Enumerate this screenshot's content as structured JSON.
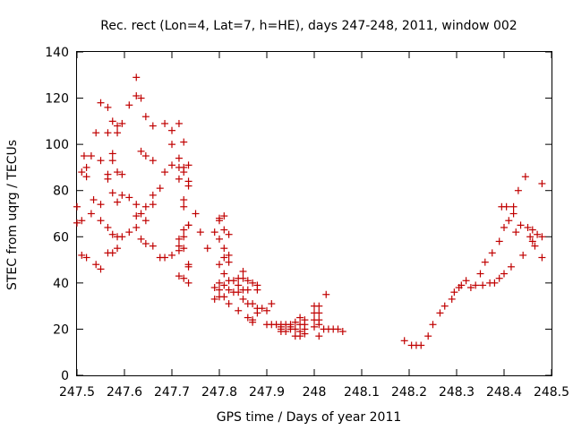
{
  "chart_data": {
    "type": "scatter",
    "title": "Rec. rect (Lon=4, Lat=7, h=HE), days 247-248, 2011, window 002",
    "xlabel": "GPS time / Days of year 2011",
    "ylabel": "STEC from uqrg / TECUs",
    "xlim": [
      247.5,
      248.5
    ],
    "ylim": [
      0,
      140
    ],
    "xticks": [
      "247.5",
      "247.6",
      "247.7",
      "247.8",
      "247.9",
      "248",
      "248.1",
      "248.2",
      "248.3",
      "248.4",
      "248.5"
    ],
    "yticks": [
      "0",
      "20",
      "40",
      "60",
      "80",
      "100",
      "120",
      "140"
    ],
    "grid": false,
    "marker": "+",
    "colors": {
      "points": "#c00000",
      "axes": "#000000"
    },
    "points": [
      [
        247.5,
        73
      ],
      [
        247.5,
        66
      ],
      [
        247.51,
        88
      ],
      [
        247.51,
        67
      ],
      [
        247.51,
        52
      ],
      [
        247.515,
        95
      ],
      [
        247.52,
        90
      ],
      [
        247.52,
        86
      ],
      [
        247.52,
        51
      ],
      [
        247.53,
        95
      ],
      [
        247.53,
        70
      ],
      [
        247.535,
        76
      ],
      [
        247.54,
        105
      ],
      [
        247.54,
        48
      ],
      [
        247.55,
        118
      ],
      [
        247.55,
        93
      ],
      [
        247.55,
        74
      ],
      [
        247.55,
        67
      ],
      [
        247.55,
        46
      ],
      [
        247.565,
        116
      ],
      [
        247.565,
        105
      ],
      [
        247.565,
        87
      ],
      [
        247.565,
        85
      ],
      [
        247.565,
        64
      ],
      [
        247.565,
        53
      ],
      [
        247.575,
        110
      ],
      [
        247.575,
        96
      ],
      [
        247.575,
        93
      ],
      [
        247.575,
        79
      ],
      [
        247.575,
        61
      ],
      [
        247.575,
        53
      ],
      [
        247.585,
        108
      ],
      [
        247.585,
        105
      ],
      [
        247.585,
        88
      ],
      [
        247.585,
        75
      ],
      [
        247.585,
        60
      ],
      [
        247.585,
        55
      ],
      [
        247.595,
        109
      ],
      [
        247.595,
        87
      ],
      [
        247.595,
        78
      ],
      [
        247.595,
        60
      ],
      [
        247.61,
        117
      ],
      [
        247.61,
        77
      ],
      [
        247.61,
        62
      ],
      [
        247.625,
        129
      ],
      [
        247.625,
        121
      ],
      [
        247.625,
        74
      ],
      [
        247.625,
        69
      ],
      [
        247.625,
        64
      ],
      [
        247.635,
        120
      ],
      [
        247.635,
        97
      ],
      [
        247.635,
        70
      ],
      [
        247.635,
        59
      ],
      [
        247.645,
        112
      ],
      [
        247.645,
        95
      ],
      [
        247.645,
        73
      ],
      [
        247.645,
        67
      ],
      [
        247.645,
        57
      ],
      [
        247.66,
        108
      ],
      [
        247.66,
        93
      ],
      [
        247.66,
        78
      ],
      [
        247.66,
        74
      ],
      [
        247.66,
        56
      ],
      [
        247.675,
        81
      ],
      [
        247.675,
        51
      ],
      [
        247.685,
        109
      ],
      [
        247.685,
        88
      ],
      [
        247.685,
        51
      ],
      [
        247.7,
        106
      ],
      [
        247.7,
        100
      ],
      [
        247.7,
        91
      ],
      [
        247.7,
        52
      ],
      [
        247.715,
        109
      ],
      [
        247.715,
        94
      ],
      [
        247.715,
        90
      ],
      [
        247.715,
        85
      ],
      [
        247.715,
        59
      ],
      [
        247.715,
        56
      ],
      [
        247.715,
        54
      ],
      [
        247.715,
        43
      ],
      [
        247.725,
        101
      ],
      [
        247.725,
        90
      ],
      [
        247.725,
        88
      ],
      [
        247.725,
        76
      ],
      [
        247.725,
        73
      ],
      [
        247.725,
        63
      ],
      [
        247.725,
        60
      ],
      [
        247.725,
        55
      ],
      [
        247.725,
        42
      ],
      [
        247.735,
        91
      ],
      [
        247.735,
        84
      ],
      [
        247.735,
        82
      ],
      [
        247.735,
        65
      ],
      [
        247.735,
        65
      ],
      [
        247.735,
        48
      ],
      [
        247.735,
        47
      ],
      [
        247.735,
        40
      ],
      [
        247.75,
        70
      ],
      [
        247.76,
        62
      ],
      [
        247.775,
        55
      ],
      [
        247.79,
        62
      ],
      [
        247.79,
        38
      ],
      [
        247.79,
        33
      ],
      [
        247.8,
        68
      ],
      [
        247.8,
        67
      ],
      [
        247.8,
        59
      ],
      [
        247.8,
        48
      ],
      [
        247.8,
        40
      ],
      [
        247.8,
        37
      ],
      [
        247.8,
        34
      ],
      [
        247.81,
        69
      ],
      [
        247.81,
        63
      ],
      [
        247.81,
        55
      ],
      [
        247.81,
        51
      ],
      [
        247.81,
        44
      ],
      [
        247.81,
        39
      ],
      [
        247.81,
        34
      ],
      [
        247.82,
        61
      ],
      [
        247.82,
        52
      ],
      [
        247.82,
        49
      ],
      [
        247.82,
        41
      ],
      [
        247.82,
        37
      ],
      [
        247.82,
        31
      ],
      [
        247.83,
        41
      ],
      [
        247.83,
        36
      ],
      [
        247.84,
        42
      ],
      [
        247.84,
        39
      ],
      [
        247.84,
        36
      ],
      [
        247.84,
        28
      ],
      [
        247.85,
        45
      ],
      [
        247.85,
        42
      ],
      [
        247.85,
        37
      ],
      [
        247.85,
        33
      ],
      [
        247.86,
        41
      ],
      [
        247.86,
        37
      ],
      [
        247.86,
        31
      ],
      [
        247.86,
        25
      ],
      [
        247.87,
        40
      ],
      [
        247.87,
        31
      ],
      [
        247.87,
        24
      ],
      [
        247.87,
        23
      ],
      [
        247.88,
        39
      ],
      [
        247.88,
        37
      ],
      [
        247.88,
        29
      ],
      [
        247.88,
        27
      ],
      [
        247.89,
        29
      ],
      [
        247.9,
        28
      ],
      [
        247.9,
        22
      ],
      [
        247.91,
        31
      ],
      [
        247.91,
        22
      ],
      [
        247.92,
        22
      ],
      [
        247.93,
        22
      ],
      [
        247.93,
        21
      ],
      [
        247.93,
        20
      ],
      [
        247.93,
        19
      ],
      [
        247.94,
        22
      ],
      [
        247.94,
        19
      ],
      [
        247.95,
        22
      ],
      [
        247.95,
        21
      ],
      [
        247.95,
        20
      ],
      [
        247.96,
        23
      ],
      [
        247.96,
        20
      ],
      [
        247.96,
        17
      ],
      [
        247.97,
        25
      ],
      [
        247.97,
        22
      ],
      [
        247.97,
        19
      ],
      [
        247.97,
        17
      ],
      [
        247.98,
        24
      ],
      [
        247.98,
        22
      ],
      [
        247.98,
        20
      ],
      [
        247.98,
        18
      ],
      [
        248.0,
        30
      ],
      [
        248.0,
        27
      ],
      [
        248.0,
        24
      ],
      [
        248.0,
        21
      ],
      [
        248.01,
        30
      ],
      [
        248.01,
        27
      ],
      [
        248.01,
        24
      ],
      [
        248.01,
        22
      ],
      [
        248.01,
        17
      ],
      [
        248.02,
        20
      ],
      [
        248.025,
        35
      ],
      [
        248.03,
        20
      ],
      [
        248.04,
        20
      ],
      [
        248.05,
        20
      ],
      [
        248.06,
        19
      ],
      [
        248.19,
        15
      ],
      [
        248.205,
        13
      ],
      [
        248.215,
        13
      ],
      [
        248.225,
        13
      ],
      [
        248.24,
        17
      ],
      [
        248.25,
        22
      ],
      [
        248.265,
        27
      ],
      [
        248.275,
        30
      ],
      [
        248.29,
        33
      ],
      [
        248.295,
        36
      ],
      [
        248.305,
        38
      ],
      [
        248.31,
        39
      ],
      [
        248.32,
        41
      ],
      [
        248.33,
        38
      ],
      [
        248.34,
        39
      ],
      [
        248.35,
        44
      ],
      [
        248.355,
        39
      ],
      [
        248.36,
        49
      ],
      [
        248.37,
        40
      ],
      [
        248.375,
        53
      ],
      [
        248.38,
        40
      ],
      [
        248.39,
        58
      ],
      [
        248.39,
        42
      ],
      [
        248.395,
        73
      ],
      [
        248.4,
        64
      ],
      [
        248.4,
        44
      ],
      [
        248.405,
        73
      ],
      [
        248.41,
        67
      ],
      [
        248.415,
        47
      ],
      [
        248.42,
        73
      ],
      [
        248.42,
        70
      ],
      [
        248.425,
        62
      ],
      [
        248.43,
        80
      ],
      [
        248.435,
        65
      ],
      [
        248.44,
        52
      ],
      [
        248.445,
        86
      ],
      [
        248.45,
        64
      ],
      [
        248.455,
        60
      ],
      [
        248.46,
        63
      ],
      [
        248.46,
        58
      ],
      [
        248.465,
        56
      ],
      [
        248.47,
        61
      ],
      [
        248.48,
        83
      ],
      [
        248.48,
        60
      ],
      [
        248.48,
        51
      ]
    ]
  }
}
